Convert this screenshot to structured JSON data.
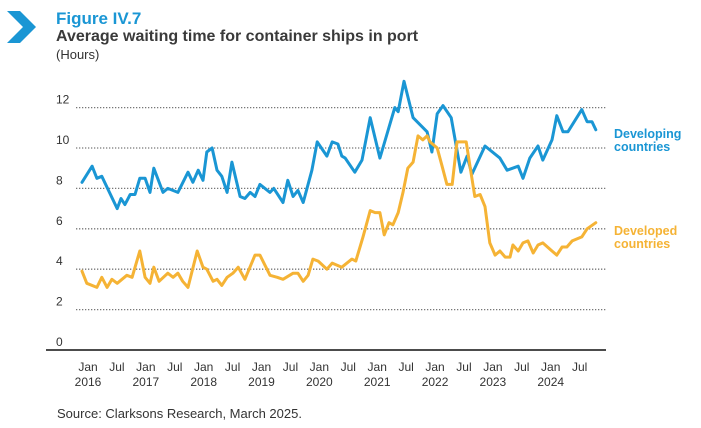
{
  "figure_label": "Figure IV.7",
  "title": "Average waiting time for container ships in port",
  "unit": "(Hours)",
  "source": "Source: Clarksons Research, March 2025.",
  "colors": {
    "developing": "#1a96d4",
    "developed": "#f5b335",
    "accent": "#1a96d4"
  },
  "chart_data": {
    "type": "line",
    "title": "Average waiting time for container ships in port",
    "ylabel": "Hours",
    "xlabel": "",
    "x_unit": "months since Jan 2016",
    "ylim": [
      0,
      12
    ],
    "xlim": [
      0,
      107
    ],
    "grid": true,
    "yticks": [
      0,
      2,
      4,
      6,
      8,
      10,
      12
    ],
    "xticks": [
      {
        "m": 0,
        "label": "Jan",
        "year": "2016"
      },
      {
        "m": 6,
        "label": "Jul"
      },
      {
        "m": 12,
        "label": "Jan",
        "year": "2017"
      },
      {
        "m": 18,
        "label": "Jul"
      },
      {
        "m": 24,
        "label": "Jan",
        "year": "2018"
      },
      {
        "m": 30,
        "label": "Jul"
      },
      {
        "m": 36,
        "label": "Jan",
        "year": "2019"
      },
      {
        "m": 42,
        "label": "Jul"
      },
      {
        "m": 48,
        "label": "Jan",
        "year": "2020"
      },
      {
        "m": 54,
        "label": "Jul"
      },
      {
        "m": 60,
        "label": "Jan",
        "year": "2021"
      },
      {
        "m": 66,
        "label": "Jul"
      },
      {
        "m": 72,
        "label": "Jan",
        "year": "2022"
      },
      {
        "m": 78,
        "label": "Jul"
      },
      {
        "m": 84,
        "label": "Jan",
        "year": "2023"
      },
      {
        "m": 90,
        "label": "Jul"
      },
      {
        "m": 96,
        "label": "Jan",
        "year": "2024"
      },
      {
        "m": 102,
        "label": "Jul"
      }
    ],
    "legend_placement": "right (inline labels)",
    "series": [
      {
        "name": "Developing countries",
        "label_lines": [
          "Developing",
          "countries"
        ],
        "color": "#1a96d4",
        "points": [
          [
            0,
            8.3
          ],
          [
            2.1,
            9.1
          ],
          [
            3.1,
            8.5
          ],
          [
            4.1,
            8.6
          ],
          [
            7.3,
            7.0
          ],
          [
            8.1,
            7.5
          ],
          [
            8.9,
            7.2
          ],
          [
            10,
            7.7
          ],
          [
            11,
            7.7
          ],
          [
            12,
            8.5
          ],
          [
            13.1,
            8.5
          ],
          [
            14.1,
            7.8
          ],
          [
            14.9,
            9.0
          ],
          [
            16.8,
            7.8
          ],
          [
            17.8,
            8.0
          ],
          [
            19.9,
            7.8
          ],
          [
            22,
            8.8
          ],
          [
            23,
            8.3
          ],
          [
            24.1,
            8.9
          ],
          [
            25.1,
            8.4
          ],
          [
            25.9,
            9.8
          ],
          [
            27,
            10.0
          ],
          [
            28,
            8.9
          ],
          [
            29,
            8.6
          ],
          [
            30.1,
            7.8
          ],
          [
            31.1,
            9.3
          ],
          [
            32.8,
            7.6
          ],
          [
            33.8,
            7.5
          ],
          [
            34.9,
            7.8
          ],
          [
            35.9,
            7.6
          ],
          [
            36.9,
            8.2
          ],
          [
            39,
            7.8
          ],
          [
            39.8,
            8.0
          ],
          [
            41.7,
            7.3
          ],
          [
            42.7,
            8.4
          ],
          [
            43.8,
            7.6
          ],
          [
            44.8,
            7.9
          ],
          [
            45.9,
            7.3
          ],
          [
            47.7,
            8.9
          ],
          [
            48.8,
            10.3
          ],
          [
            50.8,
            9.6
          ],
          [
            51.9,
            10.3
          ],
          [
            53.1,
            10.2
          ],
          [
            53.9,
            9.6
          ],
          [
            54.6,
            9.5
          ],
          [
            56.6,
            8.8
          ],
          [
            58.1,
            9.4
          ],
          [
            59.8,
            11.5
          ],
          [
            61.8,
            9.5
          ],
          [
            64.9,
            12.0
          ],
          [
            65.6,
            11.8
          ],
          [
            66.8,
            13.3
          ],
          [
            68.7,
            11.5
          ],
          [
            71.6,
            10.8
          ],
          [
            72.6,
            9.8
          ],
          [
            73.7,
            11.7
          ],
          [
            74.9,
            12.1
          ],
          [
            76.6,
            11.5
          ],
          [
            78.6,
            8.8
          ],
          [
            79.9,
            9.6
          ],
          [
            80.9,
            8.7
          ],
          [
            83.6,
            10.1
          ],
          [
            86.7,
            9.5
          ],
          [
            88.2,
            8.9
          ],
          [
            90.5,
            9.1
          ],
          [
            91.5,
            8.5
          ],
          [
            92.9,
            9.5
          ],
          [
            94.6,
            10.1
          ],
          [
            95.6,
            9.4
          ],
          [
            97.5,
            10.4
          ],
          [
            98.5,
            11.6
          ],
          [
            99.8,
            10.8
          ],
          [
            100.8,
            10.8
          ],
          [
            103.7,
            11.9
          ],
          [
            104.8,
            11.3
          ],
          [
            105.8,
            11.3
          ],
          [
            106.6,
            10.9
          ]
        ]
      },
      {
        "name": "Developed countries",
        "label_lines": [
          "Developed",
          "countries"
        ],
        "color": "#f5b335",
        "points": [
          [
            0,
            3.9
          ],
          [
            1,
            3.3
          ],
          [
            3.1,
            3.1
          ],
          [
            4.1,
            3.6
          ],
          [
            5.2,
            3.1
          ],
          [
            6.2,
            3.5
          ],
          [
            7.3,
            3.3
          ],
          [
            9.3,
            3.7
          ],
          [
            10.4,
            3.6
          ],
          [
            12,
            4.9
          ],
          [
            13.1,
            3.6
          ],
          [
            14.1,
            3.3
          ],
          [
            14.9,
            4.1
          ],
          [
            16,
            3.4
          ],
          [
            17.8,
            3.8
          ],
          [
            18.9,
            3.6
          ],
          [
            19.9,
            3.8
          ],
          [
            20.9,
            3.4
          ],
          [
            22,
            3.1
          ],
          [
            23.9,
            4.9
          ],
          [
            25.1,
            4.1
          ],
          [
            25.9,
            4.0
          ],
          [
            27.2,
            3.4
          ],
          [
            28,
            3.5
          ],
          [
            29,
            3.2
          ],
          [
            30.1,
            3.6
          ],
          [
            31.3,
            3.8
          ],
          [
            32.4,
            4.1
          ],
          [
            33.8,
            3.5
          ],
          [
            35.9,
            4.7
          ],
          [
            36.9,
            4.7
          ],
          [
            39,
            3.7
          ],
          [
            40.5,
            3.6
          ],
          [
            41.7,
            3.5
          ],
          [
            43.8,
            3.8
          ],
          [
            44.8,
            3.8
          ],
          [
            45.9,
            3.4
          ],
          [
            46.9,
            3.7
          ],
          [
            47.9,
            4.5
          ],
          [
            49,
            4.4
          ],
          [
            50.8,
            4.0
          ],
          [
            51.9,
            4.3
          ],
          [
            53.9,
            4.1
          ],
          [
            56,
            4.5
          ],
          [
            56.8,
            4.4
          ],
          [
            58.3,
            5.6
          ],
          [
            59.8,
            6.9
          ],
          [
            60.8,
            6.8
          ],
          [
            61.8,
            6.8
          ],
          [
            62.7,
            5.7
          ],
          [
            63.7,
            6.3
          ],
          [
            64.5,
            6.2
          ],
          [
            65.6,
            6.8
          ],
          [
            66.6,
            7.8
          ],
          [
            67.6,
            9.0
          ],
          [
            68.7,
            9.3
          ],
          [
            69.7,
            10.6
          ],
          [
            70.7,
            10.4
          ],
          [
            71.6,
            10.6
          ],
          [
            72.2,
            10.3
          ],
          [
            73.7,
            10.0
          ],
          [
            74.7,
            9.1
          ],
          [
            75.7,
            8.2
          ],
          [
            76.8,
            8.2
          ],
          [
            77.8,
            10.3
          ],
          [
            79.7,
            10.3
          ],
          [
            80.5,
            9.1
          ],
          [
            81.5,
            7.6
          ],
          [
            82.6,
            7.7
          ],
          [
            83.6,
            7.1
          ],
          [
            84.6,
            5.3
          ],
          [
            85.7,
            4.7
          ],
          [
            86.7,
            4.9
          ],
          [
            87.8,
            4.6
          ],
          [
            88.8,
            4.6
          ],
          [
            89.4,
            5.2
          ],
          [
            90.5,
            4.9
          ],
          [
            91.5,
            5.3
          ],
          [
            92.5,
            5.4
          ],
          [
            93.6,
            4.8
          ],
          [
            94.6,
            5.2
          ],
          [
            95.6,
            5.3
          ],
          [
            97.5,
            4.9
          ],
          [
            98.5,
            4.7
          ],
          [
            99.6,
            5.1
          ],
          [
            100.6,
            5.1
          ],
          [
            101.7,
            5.4
          ],
          [
            102.7,
            5.5
          ],
          [
            103.7,
            5.6
          ],
          [
            104.8,
            6.0
          ],
          [
            106.6,
            6.3
          ]
        ]
      }
    ]
  }
}
